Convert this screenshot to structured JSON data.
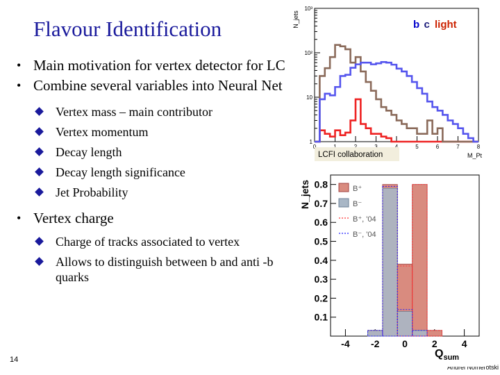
{
  "slide": {
    "title": "Flavour Identification",
    "page_number": "14",
    "author": "Andrei Nomerotski"
  },
  "bullets": [
    {
      "text": "Main motivation for vertex detector for LC",
      "sub": []
    },
    {
      "text": "Combine several variables into Neural Net",
      "sub": [
        "Vertex mass – main contributor",
        "Vertex momentum",
        "Decay length",
        "Decay length significance",
        "Jet Probability"
      ]
    },
    {
      "text": "Vertex charge",
      "sub": [
        "Charge of tracks associated to vertex",
        "Allows to distinguish between b and anti -b quarks"
      ]
    }
  ],
  "chart_data": [
    {
      "type": "line",
      "ylabel": "N_jets",
      "xlabel": "M_Pt",
      "yscale": "log",
      "ylim": [
        1,
        1000
      ],
      "xlim": [
        0,
        8
      ],
      "xticks": [
        "0",
        "1",
        "2",
        "3",
        "4",
        "5",
        "6",
        "7",
        "8"
      ],
      "yticks": [
        "1",
        "10",
        "10²",
        "10³"
      ],
      "legend_position": "top-right",
      "credit": "LCFI collaboration",
      "legend": [
        {
          "label": "b",
          "color": "#0000cc"
        },
        {
          "label": "c",
          "color": "#1a1a7a"
        },
        {
          "label": "light",
          "color": "#cc2200"
        }
      ],
      "series": [
        {
          "name": "b",
          "color": "#5555ee",
          "x": [
            0.0,
            0.25,
            0.5,
            0.75,
            1.0,
            1.25,
            1.5,
            1.75,
            2.0,
            2.25,
            2.5,
            2.75,
            3.0,
            3.25,
            3.5,
            3.75,
            4.0,
            4.25,
            4.5,
            4.75,
            5.0,
            5.25,
            5.5,
            5.75,
            6.0,
            6.25,
            6.5,
            6.75,
            7.0,
            7.25,
            7.5,
            7.75,
            8.0
          ],
          "y": [
            1,
            9,
            12,
            11,
            17,
            30,
            32,
            46,
            55,
            60,
            60,
            55,
            58,
            62,
            60,
            54,
            44,
            38,
            30,
            22,
            16,
            12,
            8,
            6,
            5,
            4,
            3,
            2.5,
            2,
            1.5,
            1.2,
            1,
            1
          ]
        },
        {
          "name": "c",
          "color": "#8a6a5a",
          "x": [
            0.0,
            0.25,
            0.5,
            0.75,
            1.0,
            1.25,
            1.5,
            1.75,
            2.0,
            2.25,
            2.5,
            2.75,
            3.0,
            3.25,
            3.5,
            3.75,
            4.0,
            4.25,
            4.5,
            4.75,
            5.0,
            5.25,
            5.5,
            5.75,
            6.0,
            6.25,
            6.5,
            6.75,
            7.0,
            7.25,
            7.5,
            7.75,
            8.0
          ],
          "y": [
            1,
            30,
            45,
            80,
            150,
            140,
            120,
            60,
            80,
            38,
            22,
            14,
            9,
            6,
            5,
            4,
            3,
            2.5,
            2,
            2,
            1.5,
            1.5,
            3,
            1.5,
            2,
            1,
            1,
            1,
            1,
            1,
            1,
            1,
            1
          ]
        },
        {
          "name": "light",
          "color": "#ee2222",
          "x": [
            0.0,
            0.25,
            0.5,
            0.75,
            1.0,
            1.25,
            1.5,
            1.75,
            2.0,
            2.25,
            2.5,
            2.75,
            3.0,
            3.25,
            3.5,
            3.75,
            4.0,
            4.25,
            4.5,
            4.75,
            5.0,
            5.25,
            5.5,
            5.75,
            6.0,
            6.25,
            6.5,
            6.75,
            7.0,
            7.25,
            7.5,
            7.75,
            8.0
          ],
          "y": [
            1,
            1.8,
            1.5,
            1.3,
            1.8,
            1.4,
            1.6,
            3,
            9,
            2.5,
            2,
            1.5,
            1.5,
            1.3,
            1.2,
            1,
            1,
            1,
            1,
            1,
            1,
            1,
            1,
            1,
            1,
            1,
            1,
            1,
            1,
            1,
            1,
            1,
            1
          ]
        }
      ]
    },
    {
      "type": "bar",
      "ylabel": "N_jets",
      "xlabel": "Q_sum",
      "ylim": [
        0,
        0.85
      ],
      "xlim": [
        -5,
        5
      ],
      "xticks": [
        "-4",
        "-2",
        "0",
        "2",
        "4"
      ],
      "yticks": [
        "0.1",
        "0.2",
        "0.3",
        "0.4",
        "0.5",
        "0.6",
        "0.7",
        "0.8"
      ],
      "legend_position": "top-left",
      "bins": [
        -2,
        -1,
        0,
        1,
        2
      ],
      "series": [
        {
          "name": "B⁺",
          "color": "#d98b7f",
          "values": [
            0.03,
            0.8,
            0.38,
            0.8,
            0.03
          ]
        },
        {
          "name": "B⁻",
          "color": "#a9b7c6",
          "values": [
            0.03,
            0.78,
            0.13,
            0.03,
            0.0
          ]
        },
        {
          "name": "B⁺, '04",
          "color": "#ff3333",
          "values": [
            0.03,
            0.79,
            0.37,
            0.8,
            0.03
          ]
        },
        {
          "name": "B⁻, '04",
          "color": "#2222ff",
          "values": [
            0.03,
            0.79,
            0.14,
            0.03,
            0.0
          ]
        }
      ]
    }
  ]
}
